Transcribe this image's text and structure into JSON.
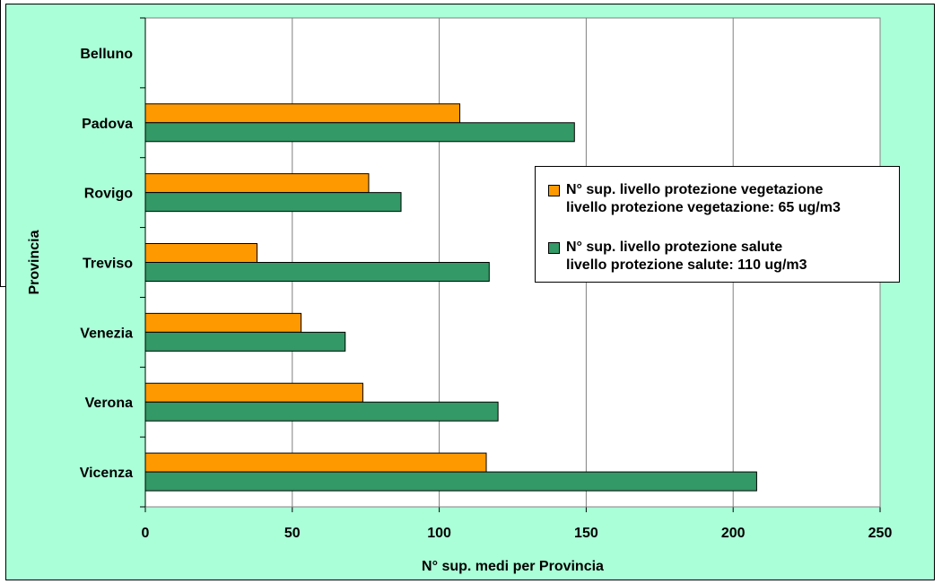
{
  "chart_data": {
    "type": "bar",
    "orientation": "horizontal",
    "categories": [
      "Belluno",
      "Padova",
      "Rovigo",
      "Treviso",
      "Venezia",
      "Verona",
      "Vicenza"
    ],
    "series": [
      {
        "name": "N° sup. livello protezione vegetazione",
        "legend_line2": "livello protezione vegetazione: 65 ug/m3",
        "color": "#ff9900",
        "values": [
          0,
          107,
          76,
          38,
          53,
          74,
          116
        ]
      },
      {
        "name": "N° sup. livello protezione salute",
        "legend_line2": "livello protezione salute: 110 ug/m3",
        "color": "#339966",
        "values": [
          0,
          146,
          87,
          117,
          68,
          120,
          208
        ]
      }
    ],
    "xlabel": "N° sup. medi per Provincia",
    "ylabel": "Provincia",
    "xlim": [
      0,
      250
    ],
    "xticks": [
      "0",
      "50",
      "100",
      "150",
      "200",
      "250"
    ],
    "grid": "vertical",
    "legend_position": "right",
    "plot_background": "#ffffff",
    "chart_background": "#aaffd8"
  }
}
